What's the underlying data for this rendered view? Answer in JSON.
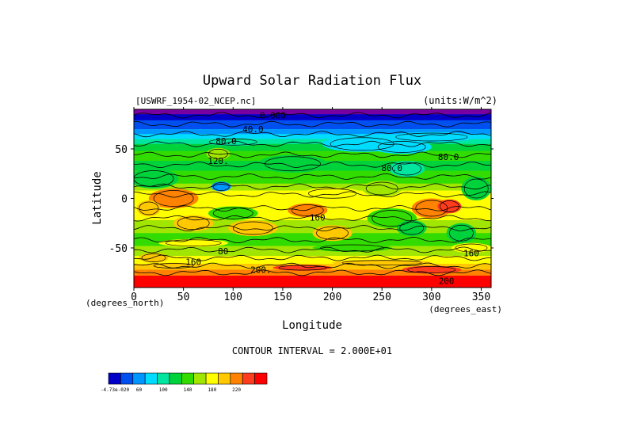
{
  "chart_data": {
    "type": "heatmap",
    "title": "Upward Solar Radiation Flux",
    "file_label": "[USWRF_1954-02_NCEP.nc]",
    "units_label": "(units:W/m^2)",
    "xlabel": "Longitude",
    "ylabel": "Latitude",
    "x_unit_label": "(degrees_east)",
    "y_unit_label": "(degrees_north)",
    "xlim": [
      0,
      360
    ],
    "ylim": [
      -90,
      90
    ],
    "x_ticks": [
      0,
      50,
      100,
      150,
      200,
      250,
      300,
      350
    ],
    "y_ticks": [
      50,
      0,
      -50
    ],
    "contour_interval_label": "CONTOUR INTERVAL = 2.000E+01",
    "contour_labels": [
      {
        "text": "0.000",
        "lon": 140,
        "lat": 84
      },
      {
        "text": "40.0",
        "lon": 120,
        "lat": 70
      },
      {
        "text": "80.0",
        "lon": 93,
        "lat": 58
      },
      {
        "text": "80.0",
        "lon": 317,
        "lat": 42
      },
      {
        "text": "120.",
        "lon": 85,
        "lat": 38
      },
      {
        "text": "80.0",
        "lon": 260,
        "lat": 31
      },
      {
        "text": "160",
        "lon": 185,
        "lat": -19
      },
      {
        "text": "160",
        "lon": 60,
        "lat": -64
      },
      {
        "text": "80",
        "lon": 90,
        "lat": -53
      },
      {
        "text": "160",
        "lon": 340,
        "lat": -55
      },
      {
        "text": "200.",
        "lon": 128,
        "lat": -72
      },
      {
        "text": "200",
        "lon": 315,
        "lat": -83
      }
    ],
    "colorbar": {
      "colors": [
        "#0000c8",
        "#0050f0",
        "#0096ff",
        "#00dcff",
        "#00e6a0",
        "#00d23c",
        "#32dc00",
        "#a0e600",
        "#ffff00",
        "#ffc800",
        "#ff8200",
        "#ff3c1e",
        "#ff0000"
      ],
      "tick_labels": [
        "-4.73e-020",
        "60",
        "100",
        "140",
        "180",
        "220"
      ]
    }
  }
}
